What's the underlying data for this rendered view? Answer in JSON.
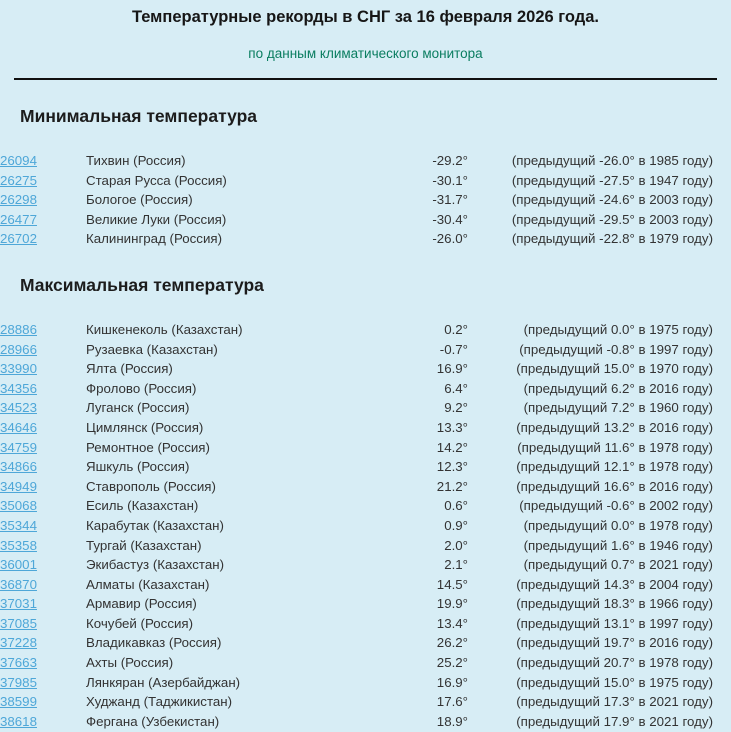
{
  "page": {
    "title": "Температурные рекорды в СНГ за 16 февраля 2026 года.",
    "subtitle": "по данным климатического монитора"
  },
  "colors": {
    "background": "#d7edf5",
    "link": "#4ea7d8",
    "subtitle_green": "#0a7d60",
    "text": "#333333",
    "heading": "#1c1c1c",
    "divider": "#101010"
  },
  "sections": [
    {
      "heading": "Минимальная температура",
      "rows": [
        {
          "id": "26094",
          "station": "Тихвин (Россия)",
          "temp": "-29.2°",
          "prev": "(предыдущий -26.0° в 1985 году)"
        },
        {
          "id": "26275",
          "station": "Старая Русса (Россия)",
          "temp": "-30.1°",
          "prev": "(предыдущий -27.5° в 1947 году)"
        },
        {
          "id": "26298",
          "station": "Бологое (Россия)",
          "temp": "-31.7°",
          "prev": "(предыдущий -24.6° в 2003 году)"
        },
        {
          "id": "26477",
          "station": "Великие Луки (Россия)",
          "temp": "-30.4°",
          "prev": "(предыдущий -29.5° в 2003 году)"
        },
        {
          "id": "26702",
          "station": "Калининград (Россия)",
          "temp": "-26.0°",
          "prev": "(предыдущий -22.8° в 1979 году)"
        }
      ]
    },
    {
      "heading": "Максимальная температура",
      "rows": [
        {
          "id": "28886",
          "station": "Кишкенеколь (Казахстан)",
          "temp": "0.2°",
          "prev": "(предыдущий 0.0° в 1975 году)"
        },
        {
          "id": "28966",
          "station": "Рузаевка (Казахстан)",
          "temp": "-0.7°",
          "prev": "(предыдущий -0.8° в 1997 году)"
        },
        {
          "id": "33990",
          "station": "Ялта (Россия)",
          "temp": "16.9°",
          "prev": "(предыдущий 15.0° в 1970 году)"
        },
        {
          "id": "34356",
          "station": "Фролово (Россия)",
          "temp": "6.4°",
          "prev": "(предыдущий 6.2° в 2016 году)"
        },
        {
          "id": "34523",
          "station": "Луганск (Россия)",
          "temp": "9.2°",
          "prev": "(предыдущий 7.2° в 1960 году)"
        },
        {
          "id": "34646",
          "station": "Цимлянск (Россия)",
          "temp": "13.3°",
          "prev": "(предыдущий 13.2° в 2016 году)"
        },
        {
          "id": "34759",
          "station": "Ремонтное (Россия)",
          "temp": "14.2°",
          "prev": "(предыдущий 11.6° в 1978 году)"
        },
        {
          "id": "34866",
          "station": "Яшкуль (Россия)",
          "temp": "12.3°",
          "prev": "(предыдущий 12.1° в 1978 году)"
        },
        {
          "id": "34949",
          "station": "Ставрополь (Россия)",
          "temp": "21.2°",
          "prev": "(предыдущий 16.6° в 2016 году)"
        },
        {
          "id": "35068",
          "station": "Есиль (Казахстан)",
          "temp": "0.6°",
          "prev": "(предыдущий -0.6° в 2002 году)"
        },
        {
          "id": "35344",
          "station": "Карабутак (Казахстан)",
          "temp": "0.9°",
          "prev": "(предыдущий 0.0° в 1978 году)"
        },
        {
          "id": "35358",
          "station": "Тургай (Казахстан)",
          "temp": "2.0°",
          "prev": "(предыдущий 1.6° в 1946 году)"
        },
        {
          "id": "36001",
          "station": "Экибастуз (Казахстан)",
          "temp": "2.1°",
          "prev": "(предыдущий 0.7° в 2021 году)"
        },
        {
          "id": "36870",
          "station": "Алматы (Казахстан)",
          "temp": "14.5°",
          "prev": "(предыдущий 14.3° в 2004 году)"
        },
        {
          "id": "37031",
          "station": "Армавир (Россия)",
          "temp": "19.9°",
          "prev": "(предыдущий 18.3° в 1966 году)"
        },
        {
          "id": "37085",
          "station": "Кочубей (Россия)",
          "temp": "13.4°",
          "prev": "(предыдущий 13.1° в 1997 году)"
        },
        {
          "id": "37228",
          "station": "Владикавказ (Россия)",
          "temp": "26.2°",
          "prev": "(предыдущий 19.7° в 2016 году)"
        },
        {
          "id": "37663",
          "station": "Ахты (Россия)",
          "temp": "25.2°",
          "prev": "(предыдущий 20.7° в 1978 году)"
        },
        {
          "id": "37985",
          "station": "Лянкяран (Азербайджан)",
          "temp": "16.9°",
          "prev": "(предыдущий 15.0° в 1975 году)"
        },
        {
          "id": "38599",
          "station": "Худжанд (Таджикистан)",
          "temp": "17.6°",
          "prev": "(предыдущий 17.3° в 2021 году)"
        },
        {
          "id": "38618",
          "station": "Фергана (Узбекистан)",
          "temp": "18.9°",
          "prev": "(предыдущий 17.9° в 2021 году)"
        }
      ]
    }
  ]
}
